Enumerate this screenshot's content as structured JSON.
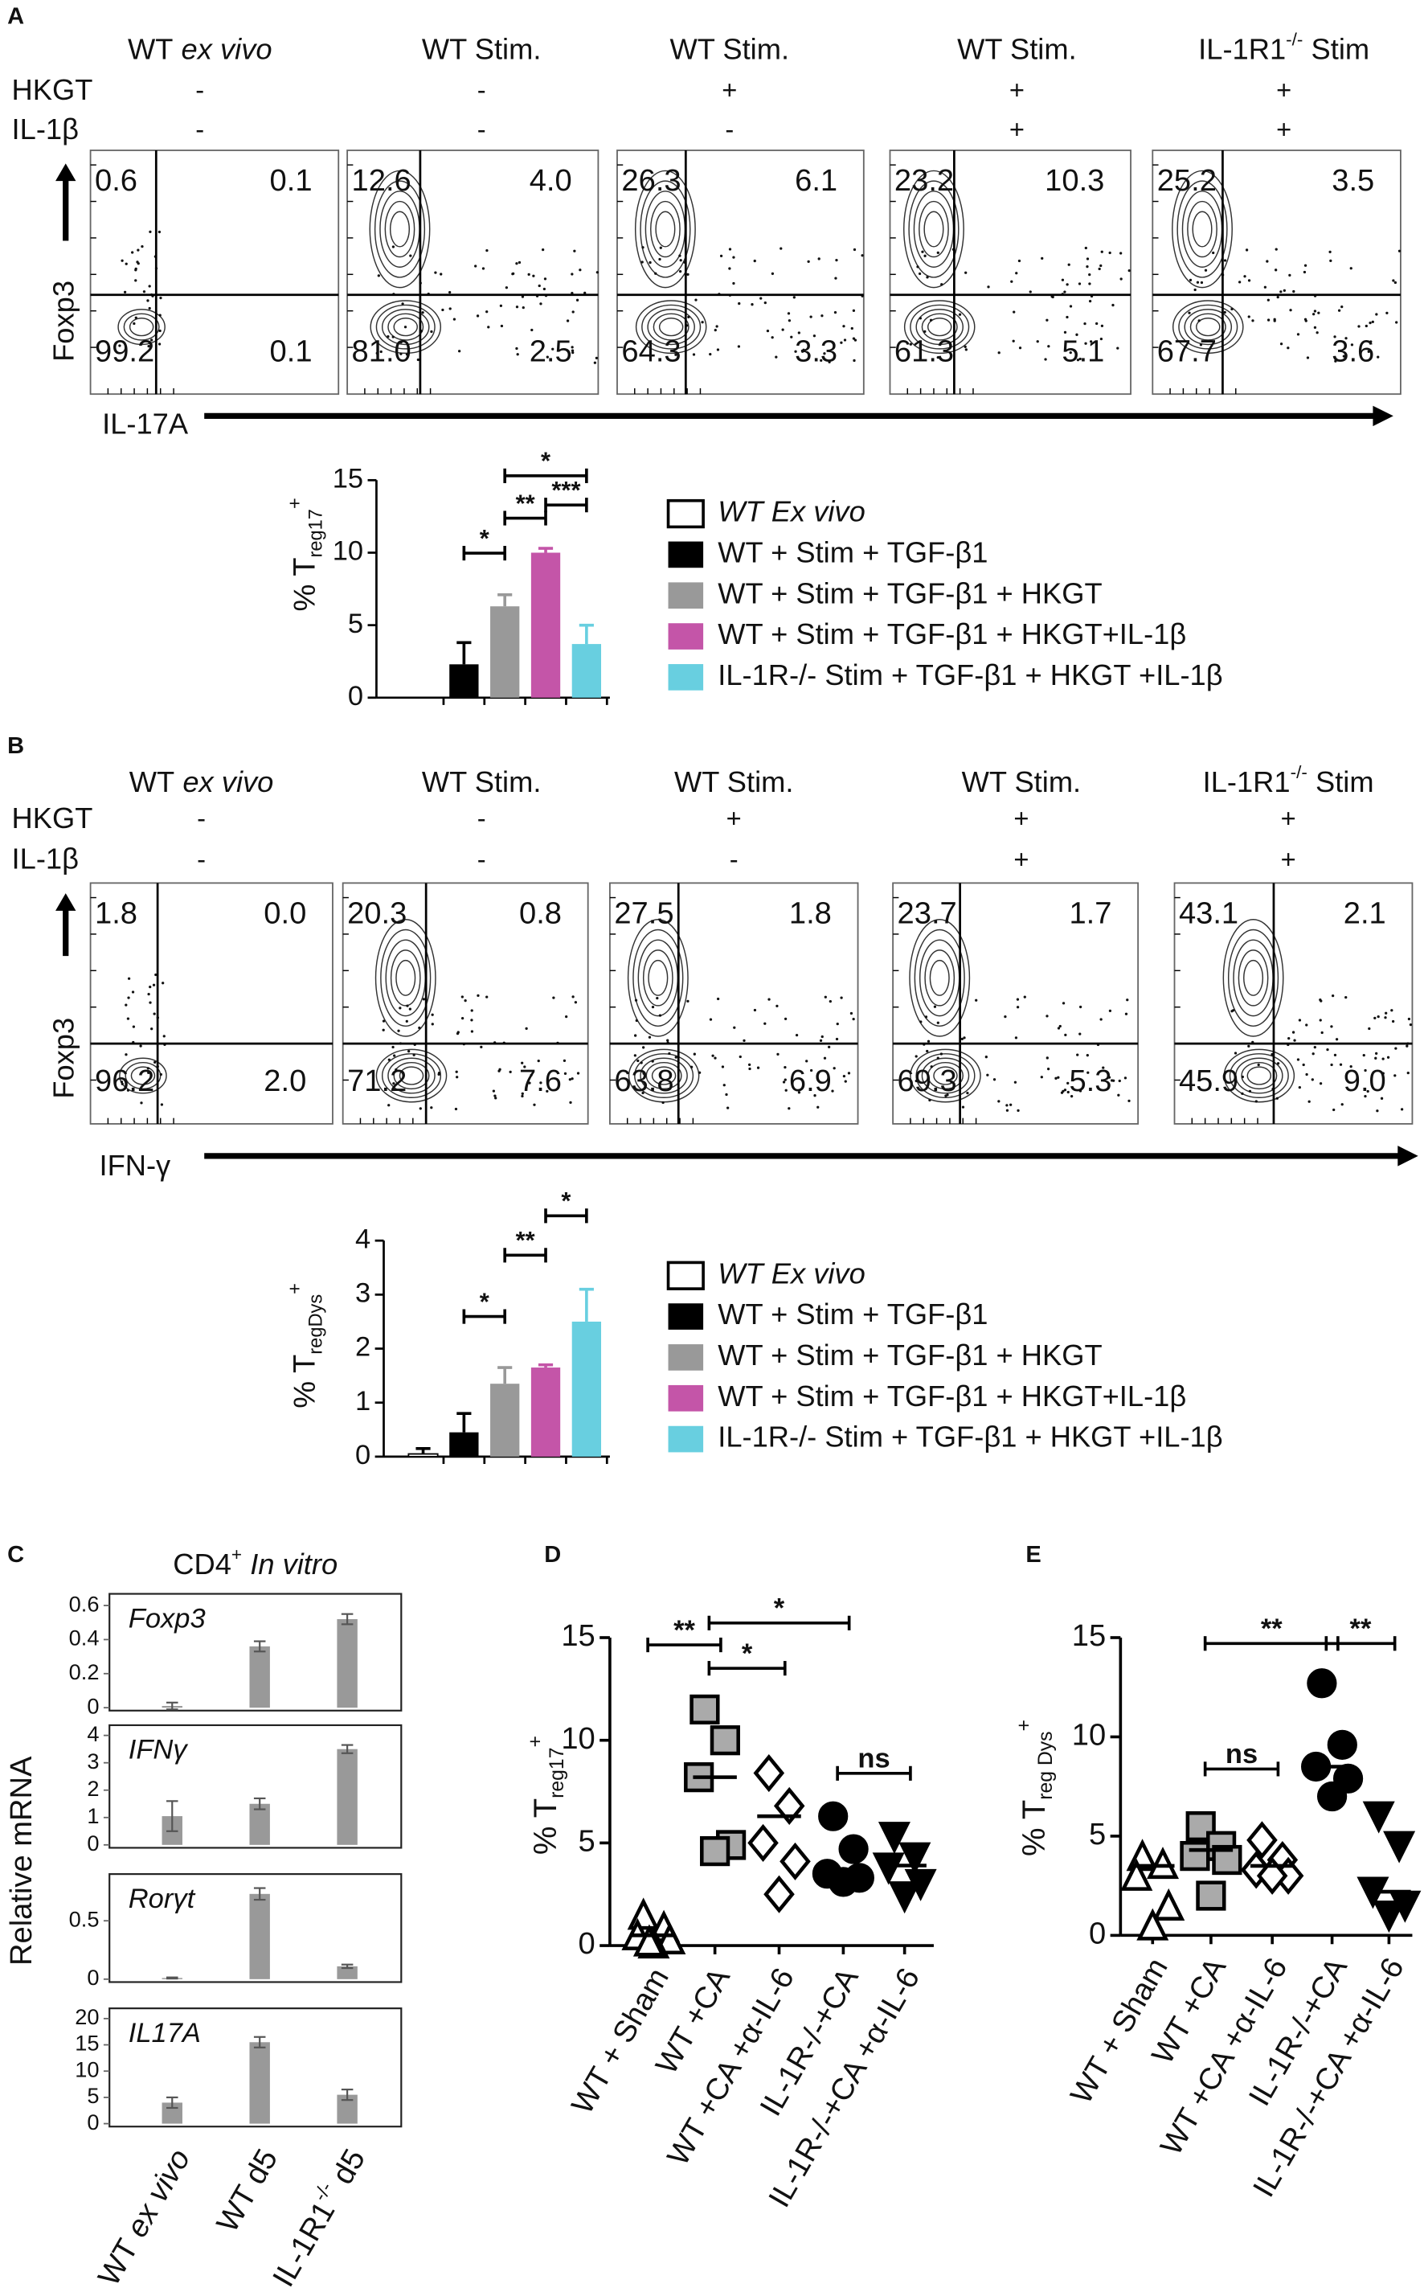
{
  "panel_labels": [
    "A",
    "B",
    "C",
    "D",
    "E"
  ],
  "flow_panels": [
    {
      "x_label": "IL-17A",
      "y_label": "Foxp3",
      "row_labels": [
        "HKGT",
        "IL-1β"
      ],
      "plots": [
        {
          "header": [
            {
              "text": "WT"
            },
            {
              "text": "ex vivo",
              "style": "italic"
            }
          ],
          "conditions": [
            "-",
            "-"
          ],
          "quadrants": [
            "0.6",
            "0.1",
            "99.2",
            "0.1"
          ]
        },
        {
          "header": [
            {
              "text": "WT Stim."
            }
          ],
          "conditions": [
            "-",
            "-"
          ],
          "quadrants": [
            "12.6",
            "4.0",
            "81.0",
            "2.5"
          ]
        },
        {
          "header": [
            {
              "text": "WT Stim."
            }
          ],
          "conditions": [
            "+",
            "-"
          ],
          "quadrants": [
            "26.3",
            "6.1",
            "64.3",
            "3.3"
          ]
        },
        {
          "header": [
            {
              "text": "WT  Stim."
            }
          ],
          "conditions": [
            "+",
            "+"
          ],
          "quadrants": [
            "23.2",
            "10.3",
            "61.3",
            "5.1"
          ]
        },
        {
          "header": [
            {
              "text": "IL-1R1"
            },
            {
              "text": "-/-",
              "style": "sup"
            },
            {
              "text": "Stim"
            }
          ],
          "conditions": [
            "+",
            "+"
          ],
          "quadrants": [
            "25.2",
            "3.5",
            "67.7",
            "3.6"
          ]
        }
      ]
    },
    {
      "x_label": "IFN-γ",
      "y_label": "Foxp3",
      "row_labels": [
        "HKGT",
        "IL-1β"
      ],
      "plots": [
        {
          "header": [
            {
              "text": "WT"
            },
            {
              "text": "ex vivo",
              "style": "italic"
            }
          ],
          "conditions": [
            "-",
            "-"
          ],
          "quadrants": [
            "1.8",
            "0.0",
            "96.2",
            "2.0"
          ]
        },
        {
          "header": [
            {
              "text": "WT Stim."
            }
          ],
          "conditions": [
            "-",
            "-"
          ],
          "quadrants": [
            "20.3",
            "0.8",
            "71.2",
            "7.6"
          ]
        },
        {
          "header": [
            {
              "text": "WT Stim."
            }
          ],
          "conditions": [
            "+",
            "-"
          ],
          "quadrants": [
            "27.5",
            "1.8",
            "63.8",
            "6.9"
          ]
        },
        {
          "header": [
            {
              "text": "WT  Stim."
            }
          ],
          "conditions": [
            "+",
            "+"
          ],
          "quadrants": [
            "23.7",
            "1.7",
            "69.3",
            "5.3"
          ]
        },
        {
          "header": [
            {
              "text": "IL-1R1"
            },
            {
              "text": "-/-",
              "style": "sup"
            },
            {
              "text": "Stim"
            }
          ],
          "conditions": [
            "+",
            "+"
          ],
          "quadrants": [
            "43.1",
            "2.1",
            "45.9",
            "9.0"
          ]
        }
      ]
    }
  ],
  "panel_c_title": [
    {
      "text": "CD4"
    },
    {
      "text": "+",
      "style": "sup"
    },
    {
      "text": "In vitro",
      "style": "italic"
    }
  ],
  "panel_c_y_label": "Relative mRNA",
  "chart_data": [
    {
      "type": "bar",
      "y_label": [
        {
          "text": "% T"
        },
        {
          "text": "reg17",
          "style": "sub"
        },
        {
          "text": "+",
          "style": "sup"
        }
      ],
      "ylim": [
        0,
        15
      ],
      "yticks": [
        0,
        5,
        10,
        15
      ],
      "series": [
        {
          "name": "WT Ex vivo",
          "style": "italic",
          "color": "#ffffff",
          "values": [
            0
          ]
        },
        {
          "name": "WT + Stim + TGF-β1",
          "color": "#000000",
          "values": [
            2.3
          ],
          "errors": [
            1.5
          ]
        },
        {
          "name": "WT + Stim + TGF-β1 + HKGT",
          "color": "#999999",
          "values": [
            6.3
          ],
          "errors": [
            0.8
          ]
        },
        {
          "name": "WT + Stim + TGF-β1 + HKGT+IL-1β",
          "color": "#c455a8",
          "values": [
            10
          ],
          "errors": [
            0.3
          ]
        },
        {
          "name": "IL-1R-/- Stim + TGF-β1 + HKGT +IL-1β",
          "color": "#68cfe0",
          "values": [
            3.7
          ],
          "errors": [
            1.3
          ]
        }
      ],
      "significance": [
        {
          "pair": [
            1,
            2
          ],
          "label": "*"
        },
        {
          "pair": [
            2,
            3
          ],
          "label": "**"
        },
        {
          "pair": [
            3,
            4
          ],
          "label": "***"
        },
        {
          "pair": [
            2,
            4
          ],
          "label": "*"
        }
      ]
    },
    {
      "type": "bar",
      "y_label": [
        {
          "text": "% T"
        },
        {
          "text": "regDys",
          "style": "sub"
        },
        {
          "text": "+",
          "style": "sup"
        }
      ],
      "ylim": [
        0,
        4
      ],
      "yticks": [
        0,
        1,
        2,
        3,
        4
      ],
      "series": [
        {
          "name": "WT Ex vivo",
          "style": "italic",
          "color": "#ffffff",
          "values": [
            0.05
          ],
          "errors": [
            0.1
          ]
        },
        {
          "name": "WT + Stim + TGF-β1",
          "color": "#000000",
          "values": [
            0.45
          ],
          "errors": [
            0.35
          ]
        },
        {
          "name": "WT + Stim + TGF-β1 + HKGT",
          "color": "#999999",
          "values": [
            1.35
          ],
          "errors": [
            0.3
          ]
        },
        {
          "name": "WT + Stim + TGF-β1 + HKGT+IL-1β",
          "color": "#c455a8",
          "values": [
            1.65
          ],
          "errors": [
            0.05
          ]
        },
        {
          "name": "IL-1R-/- Stim + TGF-β1 + HKGT +IL-1β",
          "color": "#68cfe0",
          "values": [
            2.5
          ],
          "errors": [
            0.6
          ]
        }
      ],
      "significance": [
        {
          "pair": [
            1,
            2
          ],
          "label": "*"
        },
        {
          "pair": [
            2,
            3
          ],
          "label": "**"
        },
        {
          "pair": [
            3,
            4
          ],
          "label": "*"
        }
      ]
    },
    {
      "type": "bar",
      "label": "Foxp3",
      "color": "#999999",
      "ylim": [
        0,
        0.6
      ],
      "yticks": [
        0,
        0.2,
        0.4,
        0.6
      ],
      "values": [
        0.01,
        0.36,
        0.52
      ],
      "errors": [
        0.02,
        0.03,
        0.03
      ]
    },
    {
      "type": "bar",
      "label": "IFNγ",
      "color": "#999999",
      "ylim": [
        0,
        4
      ],
      "yticks": [
        0,
        1,
        2,
        3,
        4
      ],
      "values": [
        1.05,
        1.5,
        3.5
      ],
      "errors": [
        0.55,
        0.2,
        0.15
      ]
    },
    {
      "type": "bar",
      "label": "Rorγt",
      "color": "#999999",
      "ylim": [
        0,
        0.9
      ],
      "yticks": [
        0,
        0.5
      ],
      "values": [
        0.01,
        0.73,
        0.11
      ],
      "errors": [
        0.005,
        0.05,
        0.015
      ]
    },
    {
      "type": "bar",
      "label": "IL17A",
      "color": "#999999",
      "ylim": [
        0,
        20
      ],
      "yticks": [
        0,
        5,
        10,
        15,
        20
      ],
      "values": [
        4,
        15.5,
        5.5
      ],
      "errors": [
        1,
        1,
        1
      ],
      "categories": [
        [
          {
            "text": "WT"
          },
          {
            "text": "ex vivo",
            "style": "italic"
          }
        ],
        [
          {
            "text": "WT d5"
          }
        ],
        [
          {
            "text": "IL-1R1"
          },
          {
            "text": "-/-",
            "style": "sup"
          },
          {
            "text": "d5"
          }
        ]
      ]
    },
    {
      "type": "dot",
      "y_label": [
        {
          "text": "% T"
        },
        {
          "text": "reg17",
          "style": "sub"
        },
        {
          "text": "+",
          "style": "sup"
        }
      ],
      "ylim": [
        0,
        15
      ],
      "yticks": [
        0,
        5,
        10,
        15
      ],
      "categories": [
        "WT + Sham",
        "WT +CA",
        "WT +CA +α-IL-6",
        "IL-1R-/-+CA",
        "IL-1R-/-+CA +α-IL-6"
      ],
      "markers": [
        "triangle-open",
        "square-gray",
        "diamond-open",
        "circle-black",
        "triangle-down-black"
      ],
      "values": [
        [
          1.5,
          0.9,
          0.5,
          0.3,
          0.1,
          0.2
        ],
        [
          11.5,
          10,
          8.2,
          4.9,
          4.6
        ],
        [
          8.4,
          6.8,
          5,
          4.1,
          2.5
        ],
        [
          6.3,
          4.7,
          3.5,
          3.3,
          3.1
        ],
        [
          5.3,
          4.3,
          3.8,
          3,
          2.4
        ]
      ],
      "means": [
        0.5,
        8.2,
        6.3,
        3.5,
        3.9
      ],
      "significance": [
        {
          "pair": [
            0,
            1
          ],
          "label": "**"
        },
        {
          "pair": [
            1,
            3
          ],
          "label": "*"
        },
        {
          "pair": [
            1,
            2
          ],
          "label": "*"
        },
        {
          "pair": [
            3,
            4
          ],
          "label": "ns"
        }
      ]
    },
    {
      "type": "dot",
      "y_label": [
        {
          "text": "% T"
        },
        {
          "text": "reg Dys",
          "style": "sub"
        },
        {
          "text": "+",
          "style": "sup"
        }
      ],
      "ylim": [
        0,
        15
      ],
      "yticks": [
        0,
        5,
        10,
        15
      ],
      "categories": [
        "WT + Sham",
        "WT +CA",
        "WT +CA +α-IL-6",
        "IL-1R-/-+CA",
        "IL-1R-/-+CA +α-IL-6"
      ],
      "markers": [
        "triangle-open",
        "square-gray",
        "diamond-open",
        "circle-black",
        "triangle-down-black"
      ],
      "values": [
        [
          4,
          3.6,
          3,
          1.5,
          0.5
        ],
        [
          5.5,
          4.5,
          4,
          3.8,
          2
        ],
        [
          4.8,
          3.8,
          3.3,
          3,
          3
        ],
        [
          12.7,
          9.6,
          8.5,
          7.9,
          7
        ],
        [
          6,
          4.5,
          2.2,
          1.5,
          1
        ]
      ],
      "means": [
        3.5,
        4.3,
        3.5,
        8.5,
        2.2
      ],
      "significance": [
        {
          "pair": [
            1,
            3
          ],
          "label": "**"
        },
        {
          "pair": [
            1,
            2
          ],
          "label": "ns"
        },
        {
          "pair": [
            3,
            4
          ],
          "label": "**"
        }
      ]
    }
  ]
}
